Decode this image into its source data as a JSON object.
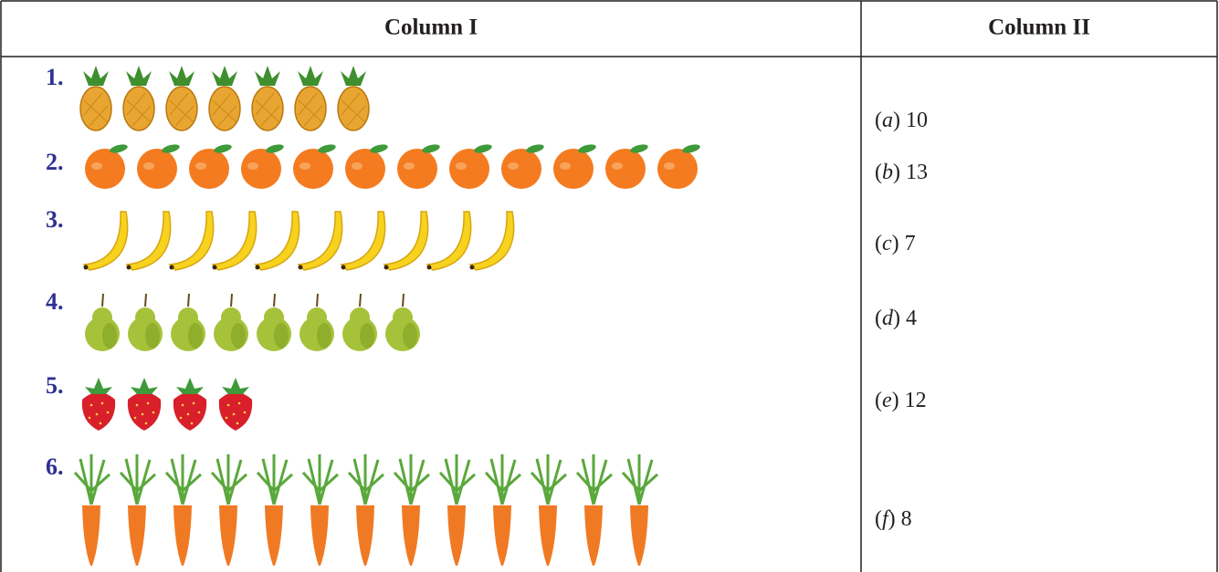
{
  "table": {
    "headers": [
      "Column I",
      "Column II"
    ],
    "left": [
      {
        "label": "1.",
        "icon": "pineapple",
        "count": 7
      },
      {
        "label": "2.",
        "icon": "orange",
        "count": 12
      },
      {
        "label": "3.",
        "icon": "banana",
        "count": 10
      },
      {
        "label": "4.",
        "icon": "pear",
        "count": 8
      },
      {
        "label": "5.",
        "icon": "strawberry",
        "count": 4
      },
      {
        "label": "6.",
        "icon": "carrot",
        "count": 13
      }
    ],
    "right": [
      {
        "option": "(a)",
        "value": 10
      },
      {
        "option": "(b)",
        "value": 13
      },
      {
        "option": "(c)",
        "value": 7
      },
      {
        "option": "(d)",
        "value": 4
      },
      {
        "option": "(e)",
        "value": 12
      },
      {
        "option": "(f)",
        "value": 8
      }
    ]
  }
}
